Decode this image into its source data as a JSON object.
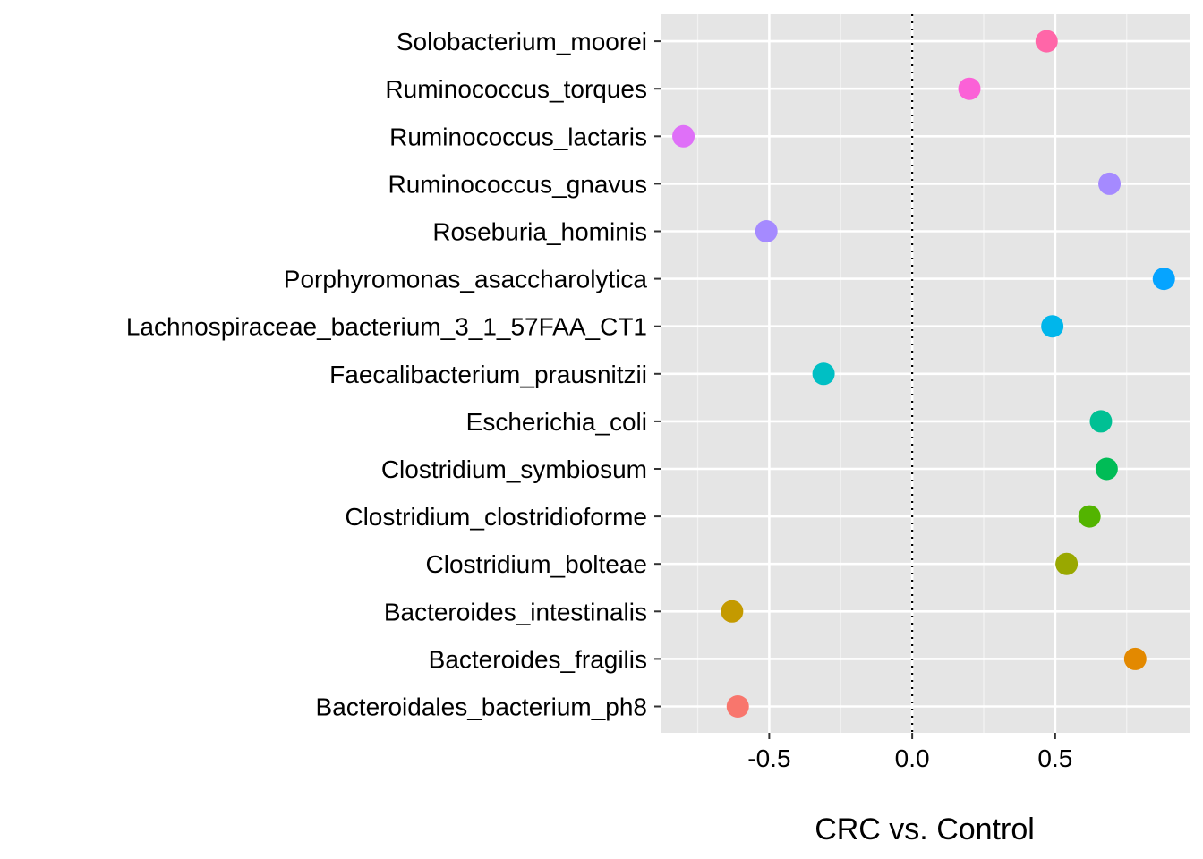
{
  "chart_data": {
    "type": "scatter",
    "title": "",
    "xlabel": "CRC vs. Control",
    "ylabel": "",
    "xlim": [
      -0.88,
      0.97
    ],
    "x_ticks": [
      -0.5,
      0.0,
      0.5
    ],
    "x_tick_labels": [
      "-0.5",
      "0.0",
      "0.5"
    ],
    "reference_line": {
      "x": 0,
      "style": "dotted"
    },
    "grid": true,
    "legend": "none",
    "background": "#E5E5E5",
    "categories": [
      "Bacteroidales_bacterium_ph8",
      "Bacteroides_fragilis",
      "Bacteroides_intestinalis",
      "Clostridium_bolteae",
      "Clostridium_clostridioforme",
      "Clostridium_symbiosum",
      "Escherichia_coli",
      "Faecalibacterium_prausnitzii",
      "Lachnospiraceae_bacterium_3_1_57FAA_CT1",
      "Porphyromonas_asaccharolytica",
      "Roseburia_hominis",
      "Ruminococcus_gnavus",
      "Ruminococcus_lactaris",
      "Ruminococcus_torques",
      "Solobacterium_moorei"
    ],
    "values": [
      -0.61,
      0.78,
      -0.63,
      0.54,
      0.62,
      0.68,
      0.66,
      -0.31,
      0.49,
      0.88,
      -0.51,
      0.69,
      -0.8,
      0.2,
      0.47
    ],
    "colors": [
      "#F8766D",
      "#E38900",
      "#C49A00",
      "#99A800",
      "#53B400",
      "#00BC56",
      "#00C094",
      "#00BFC4",
      "#00B6EB",
      "#06A4FF",
      "#A58AFF",
      "#A58AFF",
      "#DF70F8",
      "#FB61D7",
      "#FF66A8"
    ]
  }
}
